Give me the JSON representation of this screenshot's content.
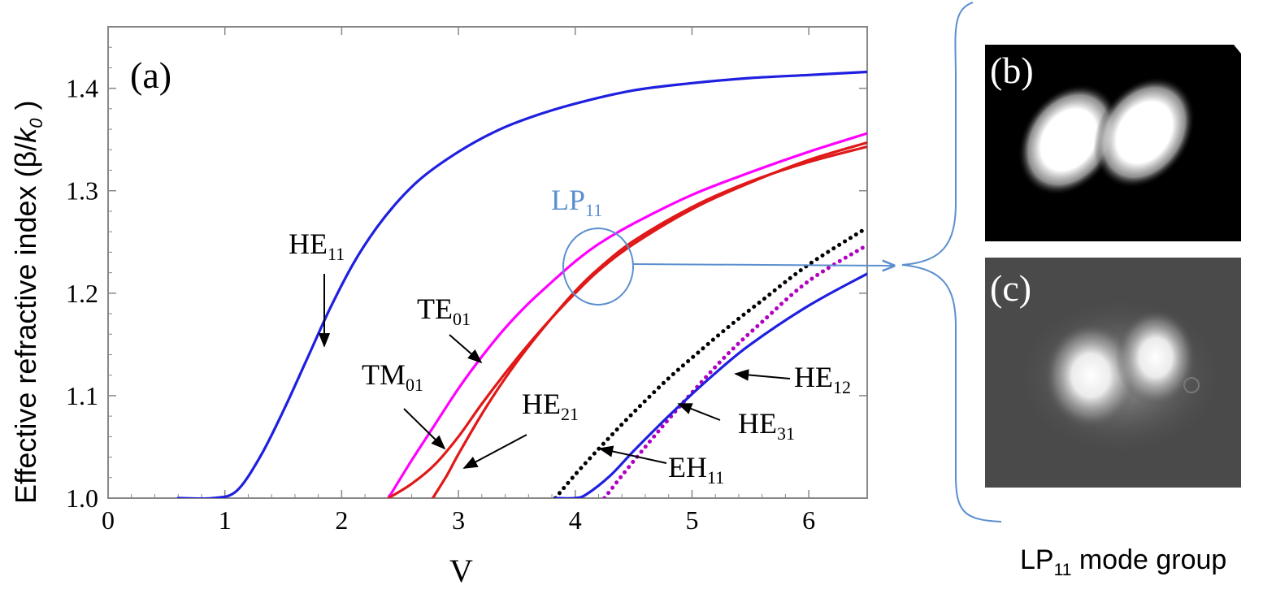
{
  "chart_data": {
    "type": "line",
    "panel_label": "(a)",
    "xlabel": "V",
    "ylabel": "Effective refractive index (β/k₀ )",
    "ylabel_parts": {
      "main": "Effective refractive index (β/",
      "italic": "k",
      "sub": "0",
      "close": " )"
    },
    "xlim": [
      0,
      6.5
    ],
    "ylim": [
      1.0,
      1.46
    ],
    "xticks": [
      0,
      1,
      2,
      3,
      4,
      5,
      6
    ],
    "xtick_labels": [
      "0",
      "1",
      "2",
      "3",
      "4",
      "5",
      "6"
    ],
    "yticks": [
      1.0,
      1.1,
      1.2,
      1.3,
      1.4
    ],
    "ytick_labels": [
      "1.0",
      "1.1",
      "1.2",
      "1.3",
      "1.4"
    ],
    "grid": false,
    "series": [
      {
        "name": "HE11",
        "color": "#1f1fe0",
        "dash": "solid",
        "x": [
          0.6,
          0.9,
          1.1,
          1.3,
          1.5,
          1.7,
          1.9,
          2.1,
          2.3,
          2.5,
          2.7,
          3.0,
          3.3,
          3.6,
          4.0,
          4.5,
          5.0,
          5.5,
          6.0,
          6.5
        ],
        "y": [
          1.0,
          1.0,
          1.007,
          1.04,
          1.085,
          1.135,
          1.185,
          1.229,
          1.264,
          1.292,
          1.314,
          1.338,
          1.357,
          1.371,
          1.385,
          1.398,
          1.405,
          1.41,
          1.413,
          1.416
        ]
      },
      {
        "name": "TE01",
        "color": "#ff00ff",
        "dash": "solid",
        "x": [
          2.4,
          2.6,
          2.8,
          3.0,
          3.2,
          3.4,
          3.6,
          3.8,
          4.0,
          4.2,
          4.5,
          5.0,
          5.5,
          6.0,
          6.5
        ],
        "y": [
          1.0,
          1.037,
          1.072,
          1.107,
          1.138,
          1.166,
          1.19,
          1.211,
          1.231,
          1.248,
          1.268,
          1.296,
          1.318,
          1.338,
          1.356
        ]
      },
      {
        "name": "TM01",
        "color": "#e01818",
        "dash": "solid",
        "x": [
          2.4,
          2.6,
          2.8,
          3.0,
          3.2,
          3.4,
          3.6,
          3.8,
          4.0,
          4.2,
          4.5,
          5.0,
          5.5,
          6.0,
          6.5
        ],
        "y": [
          1.0,
          1.014,
          1.033,
          1.06,
          1.092,
          1.122,
          1.15,
          1.176,
          1.2,
          1.222,
          1.248,
          1.282,
          1.308,
          1.33,
          1.347
        ]
      },
      {
        "name": "HE21",
        "color": "#e01818",
        "dash": "solid",
        "x": [
          2.78,
          2.9,
          3.0,
          3.2,
          3.4,
          3.6,
          3.8,
          4.0,
          4.2,
          4.5,
          5.0,
          5.5,
          6.0,
          6.5
        ],
        "y": [
          1.0,
          1.022,
          1.043,
          1.082,
          1.117,
          1.148,
          1.176,
          1.202,
          1.224,
          1.251,
          1.284,
          1.309,
          1.328,
          1.343
        ]
      },
      {
        "name": "EH11",
        "color": "#000000",
        "dash": "dotted",
        "x": [
          3.83,
          4.0,
          4.2,
          4.4,
          4.6,
          4.8,
          5.0,
          5.3,
          5.6,
          6.0,
          6.5
        ],
        "y": [
          1.0,
          1.023,
          1.048,
          1.072,
          1.095,
          1.117,
          1.137,
          1.166,
          1.193,
          1.228,
          1.264
        ]
      },
      {
        "name": "HE31",
        "color": "#b000c0",
        "dash": "dotted",
        "x": [
          4.25,
          4.4,
          4.6,
          4.8,
          5.0,
          5.3,
          5.6,
          6.0,
          6.5
        ],
        "y": [
          1.0,
          1.022,
          1.05,
          1.077,
          1.103,
          1.14,
          1.172,
          1.212,
          1.247
        ]
      },
      {
        "name": "HE12",
        "color": "#1f1fe0",
        "dash": "solid",
        "x": [
          3.83,
          4.0,
          4.1,
          4.3,
          4.5,
          4.7,
          4.9,
          5.2,
          5.5,
          6.0,
          6.5
        ],
        "y": [
          1.0,
          1.0,
          1.004,
          1.022,
          1.046,
          1.069,
          1.091,
          1.122,
          1.15,
          1.188,
          1.219
        ]
      }
    ],
    "annotations": [
      {
        "base": "HE",
        "sub": "11"
      },
      {
        "base": "TE",
        "sub": "01"
      },
      {
        "base": "TM",
        "sub": "01"
      },
      {
        "base": "HE",
        "sub": "21"
      },
      {
        "base": "LP",
        "sub": "11"
      },
      {
        "base": "EH",
        "sub": "11"
      },
      {
        "base": "HE",
        "sub": "31"
      },
      {
        "base": "HE",
        "sub": "12"
      }
    ]
  },
  "side_panels": {
    "b_label": "(b)",
    "c_label": "(c)",
    "group_caption": {
      "base": "LP",
      "sub": "11",
      "rest": " mode group"
    }
  },
  "colors": {
    "pointer": "#5b8fcf",
    "panel_b_bg": "#000000",
    "panel_c_bg": "#4a4a4a"
  }
}
